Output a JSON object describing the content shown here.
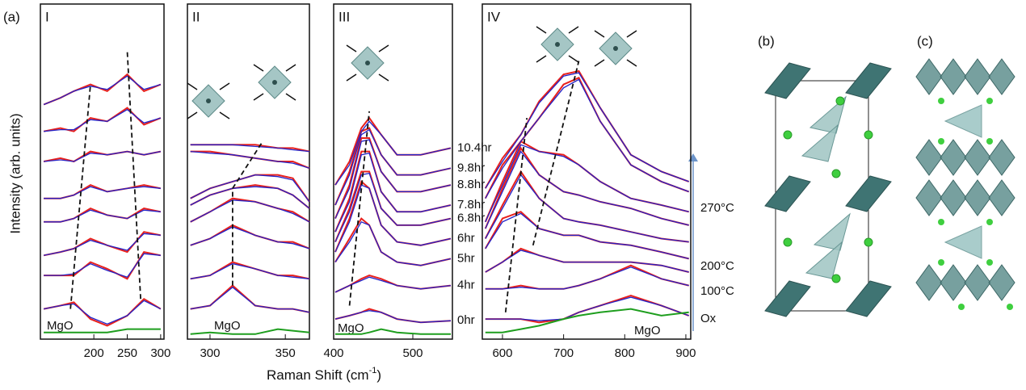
{
  "figure": {
    "label_a": "(a)",
    "label_b": "(b)",
    "label_c": "(c)",
    "ylabel": "Intensity (arb. units)",
    "xlabel": "Raman Shift (cm",
    "xlabel_sup": "-1",
    "xlabel_end": ")"
  },
  "chart_data": [
    {
      "type": "line",
      "panel_label": "I",
      "ref_label": "MgO",
      "xlim": [
        120,
        305
      ],
      "xticks": [
        200,
        250,
        300
      ],
      "ylim": [
        0,
        10
      ],
      "x": [
        125,
        150,
        170,
        195,
        220,
        250,
        275,
        300
      ],
      "series": [
        {
          "color": "#e8201c",
          "values": [
            0.9,
            1.0,
            1.1,
            0.6,
            0.4,
            0.7,
            1.2,
            0.9
          ]
        },
        {
          "color": "#e8201c",
          "values": [
            1.9,
            1.9,
            1.9,
            2.3,
            2.1,
            1.8,
            2.6,
            2.5
          ]
        },
        {
          "color": "#e8201c",
          "values": [
            2.5,
            2.6,
            2.7,
            3.0,
            2.8,
            2.6,
            3.2,
            3.1
          ]
        },
        {
          "color": "#e8201c",
          "values": [
            3.5,
            3.5,
            3.6,
            3.9,
            3.7,
            3.6,
            3.9,
            3.8
          ]
        },
        {
          "color": "#e8201c",
          "values": [
            4.2,
            4.2,
            4.3,
            4.6,
            4.4,
            4.5,
            4.6,
            4.5
          ]
        },
        {
          "color": "#e8201c",
          "values": [
            5.3,
            5.4,
            5.3,
            5.6,
            5.5,
            5.6,
            5.5,
            5.6
          ]
        },
        {
          "color": "#e8201c",
          "values": [
            6.2,
            6.3,
            6.2,
            6.6,
            6.5,
            6.9,
            6.4,
            6.6
          ]
        },
        {
          "color": "#e8201c",
          "values": [
            7.0,
            7.2,
            7.4,
            7.6,
            7.4,
            7.9,
            7.4,
            7.6
          ]
        },
        {
          "color": "#2323c8",
          "values": [
            0.9,
            1.0,
            1.05,
            0.65,
            0.45,
            0.7,
            1.15,
            0.9
          ]
        },
        {
          "color": "#2323c8",
          "values": [
            1.9,
            1.9,
            1.95,
            2.25,
            2.05,
            1.85,
            2.55,
            2.5
          ]
        },
        {
          "color": "#2323c8",
          "values": [
            2.5,
            2.6,
            2.7,
            2.95,
            2.8,
            2.65,
            3.15,
            3.1
          ]
        },
        {
          "color": "#2323c8",
          "values": [
            3.5,
            3.5,
            3.6,
            3.85,
            3.7,
            3.6,
            3.85,
            3.8
          ]
        },
        {
          "color": "#2323c8",
          "values": [
            4.2,
            4.2,
            4.3,
            4.55,
            4.4,
            4.5,
            4.55,
            4.5
          ]
        },
        {
          "color": "#2323c8",
          "values": [
            5.3,
            5.35,
            5.3,
            5.55,
            5.5,
            5.6,
            5.5,
            5.6
          ]
        },
        {
          "color": "#2323c8",
          "values": [
            6.2,
            6.25,
            6.25,
            6.55,
            6.5,
            6.85,
            6.45,
            6.6
          ]
        },
        {
          "color": "#2323c8",
          "values": [
            7.0,
            7.2,
            7.4,
            7.55,
            7.45,
            7.85,
            7.45,
            7.6
          ]
        },
        {
          "color": "#1e9e1e",
          "values": [
            0.2,
            0.2,
            0.2,
            0.2,
            0.2,
            0.3,
            0.3,
            0.3
          ]
        }
      ],
      "guides": [
        {
          "x": [
            165,
            195
          ],
          "y": [
            0.9,
            7.6
          ]
        },
        {
          "x": [
            270,
            250
          ],
          "y": [
            1.2,
            8.6
          ]
        }
      ]
    },
    {
      "type": "line",
      "panel_label": "II",
      "ref_label": "MgO",
      "xlim": [
        285,
        366
      ],
      "xticks": [
        300,
        350
      ],
      "ylim": [
        0,
        10
      ],
      "x": [
        287,
        300,
        315,
        330,
        345,
        355,
        366
      ],
      "series": [
        {
          "color": "#e8201c",
          "values": [
            0.9,
            1.0,
            1.6,
            1.0,
            0.9,
            0.9,
            0.8
          ]
        },
        {
          "color": "#e8201c",
          "values": [
            1.8,
            1.9,
            2.3,
            2.1,
            1.9,
            1.9,
            1.8
          ]
        },
        {
          "color": "#e8201c",
          "values": [
            2.8,
            3.0,
            3.4,
            3.1,
            2.9,
            2.9,
            2.7
          ]
        },
        {
          "color": "#e8201c",
          "values": [
            3.5,
            3.8,
            4.2,
            4.1,
            3.9,
            3.8,
            3.5
          ]
        },
        {
          "color": "#e8201c",
          "values": [
            4.0,
            4.3,
            4.5,
            4.6,
            4.5,
            4.3,
            3.9
          ]
        },
        {
          "color": "#e8201c",
          "values": [
            4.2,
            4.5,
            4.7,
            4.9,
            4.9,
            4.8,
            4.1
          ]
        },
        {
          "color": "#e8201c",
          "values": [
            5.6,
            5.6,
            5.5,
            5.4,
            5.3,
            5.3,
            5.1
          ]
        },
        {
          "color": "#e8201c",
          "values": [
            5.8,
            5.8,
            5.8,
            5.8,
            5.7,
            5.7,
            5.6
          ]
        },
        {
          "color": "#2323c8",
          "values": [
            0.9,
            1.0,
            1.55,
            1.0,
            0.9,
            0.9,
            0.8
          ]
        },
        {
          "color": "#2323c8",
          "values": [
            1.8,
            1.9,
            2.25,
            2.1,
            1.9,
            1.85,
            1.8
          ]
        },
        {
          "color": "#2323c8",
          "values": [
            2.8,
            3.0,
            3.35,
            3.1,
            2.9,
            2.85,
            2.7
          ]
        },
        {
          "color": "#2323c8",
          "values": [
            3.5,
            3.8,
            4.15,
            4.1,
            3.9,
            3.75,
            3.5
          ]
        },
        {
          "color": "#2323c8",
          "values": [
            4.0,
            4.3,
            4.5,
            4.55,
            4.5,
            4.3,
            3.9
          ]
        },
        {
          "color": "#2323c8",
          "values": [
            4.2,
            4.5,
            4.7,
            4.9,
            4.85,
            4.75,
            4.1
          ]
        },
        {
          "color": "#2323c8",
          "values": [
            5.6,
            5.55,
            5.5,
            5.4,
            5.3,
            5.25,
            5.1
          ]
        },
        {
          "color": "#2323c8",
          "values": [
            5.8,
            5.8,
            5.8,
            5.75,
            5.7,
            5.65,
            5.6
          ]
        },
        {
          "color": "#1e9e1e",
          "values": [
            0.15,
            0.2,
            0.15,
            0.15,
            0.3,
            0.25,
            0.2
          ]
        }
      ],
      "guides": [
        {
          "x": [
            315,
            315
          ],
          "y": [
            1.6,
            4.5
          ]
        },
        {
          "x": [
            315,
            335
          ],
          "y": [
            4.5,
            5.9
          ]
        }
      ]
    },
    {
      "type": "line",
      "panel_label": "III",
      "ref_label": "MgO",
      "xlim": [
        400,
        550
      ],
      "xticks": [
        400,
        500
      ],
      "ylim": [
        0,
        10
      ],
      "x": [
        402,
        420,
        435,
        445,
        460,
        480,
        510,
        548
      ],
      "series": [
        {
          "name": "0hr",
          "color": "#e8201c",
          "values": [
            0.6,
            0.7,
            0.8,
            0.9,
            0.8,
            0.6,
            0.5,
            0.55
          ]
        },
        {
          "name": "4hr",
          "color": "#e8201c",
          "values": [
            1.4,
            1.6,
            1.8,
            1.9,
            1.8,
            1.6,
            1.5,
            1.6
          ]
        },
        {
          "name": "5hr",
          "color": "#e8201c",
          "values": [
            2.3,
            3.0,
            3.6,
            3.4,
            2.6,
            2.3,
            2.2,
            2.4
          ]
        },
        {
          "name": "6hr",
          "color": "#e8201c",
          "values": [
            2.6,
            3.6,
            4.7,
            4.5,
            3.4,
            2.9,
            2.8,
            3.0
          ]
        },
        {
          "name": "6.8hr",
          "color": "#e8201c",
          "values": [
            2.9,
            3.9,
            5.0,
            5.0,
            3.9,
            3.4,
            3.4,
            3.6
          ]
        },
        {
          "name": "7.8hr",
          "color": "#e8201c",
          "values": [
            3.2,
            4.2,
            5.6,
            5.6,
            4.4,
            3.8,
            3.8,
            4.0
          ]
        },
        {
          "name": "8.8hr",
          "color": "#e8201c",
          "values": [
            3.6,
            4.6,
            6.0,
            6.0,
            5.0,
            4.4,
            4.4,
            4.6
          ]
        },
        {
          "name": "9.8hr",
          "color": "#e8201c",
          "values": [
            4.0,
            5.0,
            6.2,
            6.3,
            5.5,
            4.9,
            4.9,
            5.1
          ]
        },
        {
          "name": "10.4hr",
          "color": "#e8201c",
          "values": [
            4.6,
            5.3,
            6.3,
            6.6,
            6.1,
            5.5,
            5.5,
            5.7
          ]
        },
        {
          "color": "#2323c8",
          "values": [
            0.6,
            0.7,
            0.8,
            0.85,
            0.8,
            0.6,
            0.5,
            0.55
          ]
        },
        {
          "color": "#2323c8",
          "values": [
            1.4,
            1.6,
            1.75,
            1.85,
            1.75,
            1.6,
            1.5,
            1.6
          ]
        },
        {
          "color": "#2323c8",
          "values": [
            2.3,
            2.9,
            3.5,
            3.4,
            2.6,
            2.3,
            2.2,
            2.4
          ]
        },
        {
          "color": "#2323c8",
          "values": [
            2.6,
            3.5,
            4.6,
            4.5,
            3.4,
            2.9,
            2.8,
            3.0
          ]
        },
        {
          "color": "#2323c8",
          "values": [
            2.9,
            3.8,
            4.9,
            4.95,
            3.9,
            3.4,
            3.4,
            3.6
          ]
        },
        {
          "color": "#2323c8",
          "values": [
            3.2,
            4.1,
            5.5,
            5.55,
            4.4,
            3.8,
            3.8,
            4.0
          ]
        },
        {
          "color": "#2323c8",
          "values": [
            3.6,
            4.5,
            5.9,
            5.95,
            5.0,
            4.4,
            4.4,
            4.6
          ]
        },
        {
          "color": "#2323c8",
          "values": [
            4.0,
            4.9,
            6.1,
            6.25,
            5.5,
            4.9,
            4.9,
            5.1
          ]
        },
        {
          "color": "#2323c8",
          "values": [
            4.6,
            5.2,
            6.2,
            6.5,
            6.1,
            5.5,
            5.5,
            5.7
          ]
        },
        {
          "color": "#1e9e1e",
          "values": [
            0.15,
            0.15,
            0.15,
            0.2,
            0.3,
            0.2,
            0.15,
            0.15
          ]
        }
      ],
      "guides": [
        {
          "x": [
            420,
            445
          ],
          "y": [
            1.0,
            6.8
          ]
        }
      ]
    },
    {
      "type": "line",
      "panel_label": "IV",
      "ref_label": "MgO",
      "annotations": [
        "270°C",
        "200°C",
        "100°C",
        "Ox"
      ],
      "xlim": [
        567,
        908
      ],
      "xticks": [
        600,
        700,
        800,
        900
      ],
      "ylim": [
        0,
        10
      ],
      "x": [
        572,
        600,
        630,
        660,
        700,
        725,
        760,
        810,
        860,
        905
      ],
      "series": [
        {
          "color": "#e8201c",
          "values": [
            0.6,
            0.6,
            0.6,
            0.5,
            0.6,
            0.8,
            1.0,
            1.3,
            1.0,
            0.7
          ]
        },
        {
          "color": "#e8201c",
          "values": [
            1.5,
            1.5,
            1.6,
            1.5,
            1.5,
            1.6,
            1.8,
            2.2,
            1.8,
            1.6
          ]
        },
        {
          "color": "#e8201c",
          "values": [
            2.0,
            2.3,
            2.7,
            2.5,
            2.3,
            2.3,
            2.3,
            2.3,
            2.2,
            2.0
          ]
        },
        {
          "color": "#e8201c",
          "values": [
            2.7,
            3.6,
            3.8,
            3.3,
            3.1,
            3.1,
            2.9,
            2.8,
            2.6,
            2.4
          ]
        },
        {
          "color": "#e8201c",
          "values": [
            3.0,
            4.0,
            5.0,
            4.2,
            3.6,
            3.5,
            3.4,
            3.2,
            3.0,
            2.9
          ]
        },
        {
          "color": "#e8201c",
          "values": [
            3.3,
            4.5,
            5.7,
            4.9,
            4.4,
            4.3,
            4.1,
            3.9,
            3.6,
            3.4
          ]
        },
        {
          "color": "#e8201c",
          "values": [
            3.5,
            4.7,
            5.9,
            5.6,
            5.5,
            5.2,
            4.7,
            4.2,
            4.0,
            3.8
          ]
        },
        {
          "color": "#e8201c",
          "values": [
            4.2,
            5.2,
            5.9,
            6.6,
            7.6,
            7.8,
            6.5,
            5.2,
            4.7,
            4.4
          ]
        },
        {
          "color": "#e8201c",
          "values": [
            4.5,
            5.4,
            6.1,
            7.1,
            7.9,
            8.0,
            6.9,
            5.5,
            5.0,
            4.7
          ]
        },
        {
          "color": "#2323c8",
          "values": [
            0.6,
            0.6,
            0.6,
            0.55,
            0.6,
            0.8,
            1.0,
            1.25,
            1.0,
            0.7
          ]
        },
        {
          "color": "#2323c8",
          "values": [
            1.5,
            1.5,
            1.55,
            1.5,
            1.5,
            1.6,
            1.8,
            2.15,
            1.8,
            1.6
          ]
        },
        {
          "color": "#2323c8",
          "values": [
            2.0,
            2.3,
            2.65,
            2.5,
            2.3,
            2.3,
            2.3,
            2.3,
            2.2,
            2.0
          ]
        },
        {
          "color": "#2323c8",
          "values": [
            2.7,
            3.5,
            3.75,
            3.3,
            3.1,
            3.1,
            2.9,
            2.8,
            2.6,
            2.4
          ]
        },
        {
          "color": "#2323c8",
          "values": [
            3.0,
            3.9,
            4.9,
            4.2,
            3.6,
            3.5,
            3.4,
            3.2,
            3.0,
            2.9
          ]
        },
        {
          "color": "#2323c8",
          "values": [
            3.3,
            4.4,
            5.6,
            4.9,
            4.4,
            4.3,
            4.1,
            3.9,
            3.6,
            3.4
          ]
        },
        {
          "color": "#2323c8",
          "values": [
            3.5,
            4.6,
            5.8,
            5.6,
            5.45,
            5.2,
            4.7,
            4.2,
            4.0,
            3.8
          ]
        },
        {
          "color": "#2323c8",
          "values": [
            4.2,
            5.1,
            5.9,
            6.6,
            7.5,
            7.75,
            6.5,
            5.2,
            4.7,
            4.4
          ]
        },
        {
          "color": "#2323c8",
          "values": [
            4.5,
            5.3,
            6.1,
            7.05,
            7.85,
            7.95,
            6.9,
            5.5,
            5.0,
            4.7
          ]
        },
        {
          "color": "#1e9e1e",
          "values": [
            0.2,
            0.2,
            0.3,
            0.4,
            0.6,
            0.7,
            0.8,
            0.9,
            0.7,
            0.8
          ]
        }
      ],
      "guides": [
        {
          "x": [
            605,
            640
          ],
          "y": [
            0.8,
            6.6
          ]
        },
        {
          "x": [
            650,
            725
          ],
          "y": [
            2.8,
            8.3
          ]
        }
      ]
    }
  ]
}
